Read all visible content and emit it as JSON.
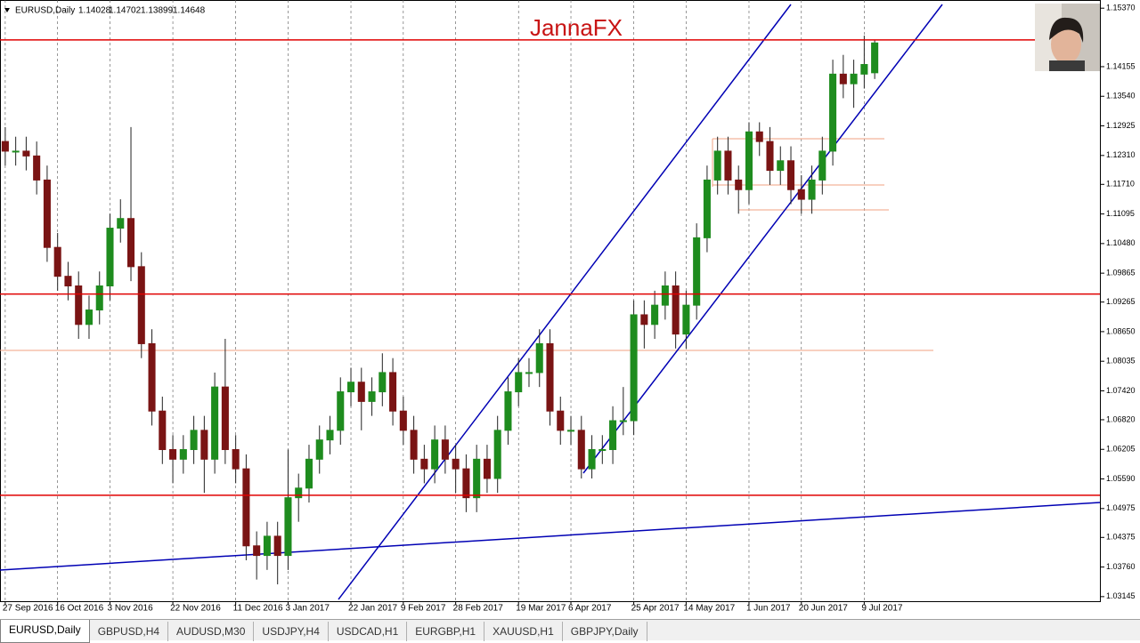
{
  "chart_data": {
    "type": "candlestick",
    "title": "EURUSD,Daily",
    "annotation": "JannaFX",
    "up_color": "#1e8c1e",
    "down_color": "#7a1414",
    "grid": true,
    "xlim": [
      -0.5,
      104.5
    ],
    "ylim": [
      1.0305,
      1.1554
    ],
    "xticks": [
      {
        "value": 0,
        "label": "27 Sep 2016"
      },
      {
        "value": 5,
        "label": "16 Oct 2016"
      },
      {
        "value": 10,
        "label": "3 Nov 2016"
      },
      {
        "value": 16,
        "label": "22 Nov 2016"
      },
      {
        "value": 22,
        "label": "11 Dec 2016"
      },
      {
        "value": 27,
        "label": "3 Jan 2017"
      },
      {
        "value": 33,
        "label": "22 Jan 2017"
      },
      {
        "value": 38,
        "label": "9 Feb 2017"
      },
      {
        "value": 43,
        "label": "28 Feb 2017"
      },
      {
        "value": 49,
        "label": "19 Mar 2017"
      },
      {
        "value": 54,
        "label": "6 Apr 2017"
      },
      {
        "value": 60,
        "label": "25 Apr 2017"
      },
      {
        "value": 65,
        "label": "14 May 2017"
      },
      {
        "value": 71,
        "label": "1 Jun 2017"
      },
      {
        "value": 76,
        "label": "20 Jun 2017"
      },
      {
        "value": 82,
        "label": "9 Jul 2017"
      }
    ],
    "yticks": [
      {
        "value": 1.1537,
        "label": "1.15370"
      },
      1.14155,
      {
        "value": 1.1354,
        "label": "1.13540"
      },
      1.12925,
      {
        "value": 1.1231,
        "label": "1.12310"
      },
      {
        "value": 1.1171,
        "label": "1.11710"
      },
      1.11095,
      {
        "value": 1.1048,
        "label": "1.10480"
      },
      1.09865,
      1.09265,
      {
        "value": 1.0865,
        "label": "1.08650"
      },
      1.08035,
      {
        "value": 1.0742,
        "label": "1.07420"
      },
      {
        "value": 1.0682,
        "label": "1.06820"
      },
      1.06205,
      {
        "value": 1.0559,
        "label": "1.05590"
      },
      1.04975,
      1.04375,
      {
        "value": 1.0376,
        "label": "1.03760"
      },
      1.03145
    ],
    "levels": [
      1.14711,
      1.09431,
      1.05251
    ],
    "level_color": "#e00000",
    "open": [
      1.126,
      1.124,
      1.124,
      1.123,
      1.118,
      1.104,
      1.098,
      1.096,
      1.088,
      1.091,
      1.096,
      1.108,
      1.11,
      1.1,
      1.084,
      1.07,
      1.062,
      1.06,
      1.062,
      1.066,
      1.06,
      1.075,
      1.062,
      1.058,
      1.042,
      1.04,
      1.044,
      1.04,
      1.052,
      1.054,
      1.06,
      1.064,
      1.066,
      1.074,
      1.076,
      1.072,
      1.074,
      1.078,
      1.07,
      1.066,
      1.06,
      1.058,
      1.064,
      1.06,
      1.058,
      1.052,
      1.06,
      1.056,
      1.066,
      1.074,
      1.078,
      1.078,
      1.084,
      1.07,
      1.066,
      1.066,
      1.058,
      1.062,
      1.062,
      1.068,
      1.068,
      1.09,
      1.088,
      1.092,
      1.096,
      1.086,
      1.092,
      1.106,
      1.118,
      1.124,
      1.118,
      1.116,
      1.128,
      1.126,
      1.12,
      1.122,
      1.116,
      1.114,
      1.118,
      1.124,
      1.14,
      1.138,
      1.14,
      1.14028
    ],
    "high": [
      1.129,
      1.127,
      1.127,
      1.126,
      1.121,
      1.107,
      1.101,
      1.099,
      1.094,
      1.099,
      1.111,
      1.114,
      1.129,
      1.103,
      1.087,
      1.073,
      1.065,
      1.065,
      1.069,
      1.069,
      1.078,
      1.085,
      1.065,
      1.061,
      1.045,
      1.047,
      1.047,
      1.062,
      1.057,
      1.063,
      1.067,
      1.069,
      1.077,
      1.079,
      1.079,
      1.077,
      1.082,
      1.081,
      1.073,
      1.069,
      1.063,
      1.067,
      1.067,
      1.063,
      1.061,
      1.063,
      1.063,
      1.069,
      1.077,
      1.081,
      1.081,
      1.087,
      1.087,
      1.073,
      1.069,
      1.069,
      1.065,
      1.065,
      1.071,
      1.075,
      1.093,
      1.093,
      1.095,
      1.099,
      1.099,
      1.095,
      1.109,
      1.121,
      1.127,
      1.127,
      1.121,
      1.13,
      1.13,
      1.129,
      1.125,
      1.125,
      1.119,
      1.121,
      1.127,
      1.143,
      1.144,
      1.143,
      1.148,
      1.14702
    ],
    "low": [
      1.121,
      1.121,
      1.12,
      1.115,
      1.101,
      1.095,
      1.093,
      1.085,
      1.085,
      1.088,
      1.093,
      1.105,
      1.097,
      1.081,
      1.067,
      1.059,
      1.055,
      1.057,
      1.059,
      1.053,
      1.057,
      1.059,
      1.055,
      1.039,
      1.035,
      1.037,
      1.034,
      1.037,
      1.047,
      1.051,
      1.057,
      1.061,
      1.063,
      1.071,
      1.066,
      1.069,
      1.071,
      1.067,
      1.063,
      1.057,
      1.055,
      1.055,
      1.057,
      1.053,
      1.049,
      1.049,
      1.053,
      1.053,
      1.063,
      1.071,
      1.075,
      1.075,
      1.067,
      1.063,
      1.063,
      1.056,
      1.056,
      1.059,
      1.059,
      1.065,
      1.065,
      1.083,
      1.085,
      1.089,
      1.083,
      1.083,
      1.089,
      1.103,
      1.115,
      1.115,
      1.111,
      1.113,
      1.123,
      1.117,
      1.117,
      1.113,
      1.111,
      1.111,
      1.115,
      1.121,
      1.135,
      1.133,
      1.137,
      1.13899
    ],
    "close": [
      1.124,
      1.124,
      1.123,
      1.118,
      1.104,
      1.098,
      1.096,
      1.088,
      1.091,
      1.096,
      1.108,
      1.11,
      1.1,
      1.084,
      1.07,
      1.062,
      1.06,
      1.062,
      1.066,
      1.06,
      1.075,
      1.062,
      1.058,
      1.042,
      1.04,
      1.044,
      1.04,
      1.052,
      1.054,
      1.06,
      1.064,
      1.066,
      1.074,
      1.076,
      1.072,
      1.074,
      1.078,
      1.07,
      1.066,
      1.06,
      1.058,
      1.064,
      1.06,
      1.058,
      1.052,
      1.06,
      1.056,
      1.066,
      1.074,
      1.078,
      1.078,
      1.084,
      1.07,
      1.066,
      1.066,
      1.058,
      1.062,
      1.062,
      1.068,
      1.068,
      1.09,
      1.088,
      1.092,
      1.096,
      1.086,
      1.092,
      1.106,
      1.118,
      1.124,
      1.118,
      1.116,
      1.128,
      1.126,
      1.12,
      1.122,
      1.116,
      1.114,
      1.118,
      1.124,
      1.14,
      1.138,
      1.14,
      1.142,
      1.14648
    ]
  },
  "tabs": [
    "EURUSD,Daily",
    "GBPUSD,H4",
    "AUDUSD,M30",
    "USDJPY,H4",
    "USDCAD,H1",
    "EURGBP,H1",
    "XAUUSD,H1",
    "GBPJPY,Daily"
  ]
}
